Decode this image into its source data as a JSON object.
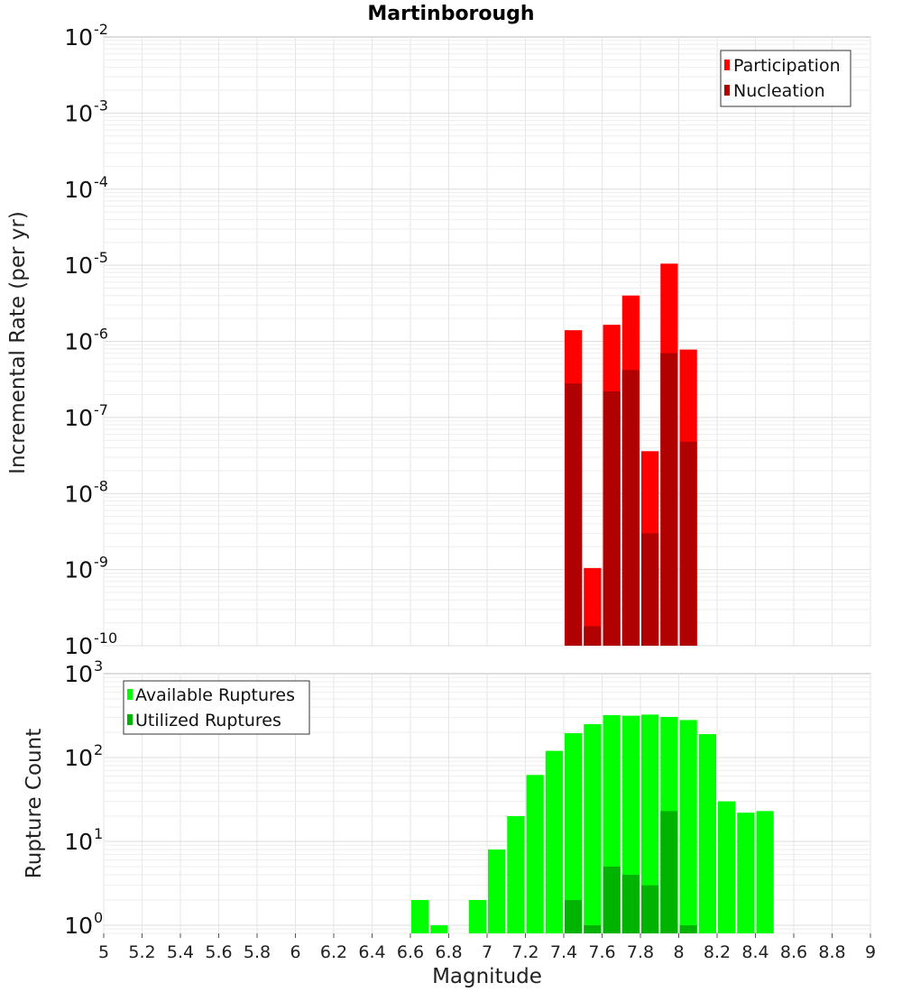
{
  "chart_data": [
    {
      "type": "bar",
      "title": "Martinborough",
      "ylabel": "Incremental Rate (per yr)",
      "xlabel": "",
      "yscale": "log",
      "ylim": [
        1e-10,
        0.01
      ],
      "xlim": [
        5,
        9
      ],
      "y_ticks": [
        {
          "base": "10",
          "exp": "-10"
        },
        {
          "base": "10",
          "exp": "-9"
        },
        {
          "base": "10",
          "exp": "-8"
        },
        {
          "base": "10",
          "exp": "-7"
        },
        {
          "base": "10",
          "exp": "-6"
        },
        {
          "base": "10",
          "exp": "-5"
        },
        {
          "base": "10",
          "exp": "-4"
        },
        {
          "base": "10",
          "exp": "-3"
        },
        {
          "base": "10",
          "exp": "-2"
        }
      ],
      "bar_width": 0.1,
      "x": [
        7.45,
        7.55,
        7.65,
        7.75,
        7.85,
        7.95,
        8.05
      ],
      "series": [
        {
          "name": "Participation",
          "color": "#ff0000",
          "values": [
            1.4e-06,
            1.05e-09,
            1.65e-06,
            4e-06,
            3.6e-08,
            1.05e-05,
            7.8e-07
          ]
        },
        {
          "name": "Nucleation",
          "color": "#b00000",
          "values": [
            2.8e-07,
            1.8e-10,
            2.2e-07,
            4.2e-07,
            3e-09,
            7e-07,
            4.8e-08
          ]
        }
      ],
      "legend": "top-right",
      "grid": true
    },
    {
      "type": "bar",
      "title": "",
      "ylabel": "Rupture Count",
      "xlabel": "Magnitude",
      "yscale": "log",
      "ylim": [
        0.8,
        1000
      ],
      "xlim": [
        5,
        9
      ],
      "y_ticks": [
        {
          "base": "10",
          "exp": "0",
          "value": 1
        },
        {
          "base": "10",
          "exp": "1",
          "value": 10
        },
        {
          "base": "10",
          "exp": "2",
          "value": 100
        },
        {
          "base": "10",
          "exp": "3",
          "value": 1000
        }
      ],
      "x_ticks": [
        "5",
        "5.2",
        "5.4",
        "5.6",
        "5.8",
        "6",
        "6.2",
        "6.4",
        "6.6",
        "6.8",
        "7",
        "7.2",
        "7.4",
        "7.6",
        "7.8",
        "8",
        "8.2",
        "8.4",
        "8.6",
        "8.8",
        "9"
      ],
      "bar_width": 0.1,
      "series": [
        {
          "name": "Available Ruptures",
          "color": "#00ff00",
          "x": [
            6.65,
            6.75,
            6.95,
            7.05,
            7.15,
            7.25,
            7.35,
            7.45,
            7.55,
            7.65,
            7.75,
            7.85,
            7.95,
            8.05,
            8.15,
            8.25,
            8.35,
            8.45
          ],
          "values": [
            2,
            1,
            2,
            8,
            20,
            62,
            120,
            195,
            250,
            320,
            315,
            325,
            305,
            280,
            190,
            30,
            22,
            23
          ]
        },
        {
          "name": "Utilized Ruptures",
          "color": "#00b300",
          "x": [
            7.45,
            7.55,
            7.65,
            7.75,
            7.85,
            7.95,
            8.05
          ],
          "values": [
            2,
            1,
            5,
            4,
            3,
            23,
            1
          ]
        }
      ],
      "legend": "top-left",
      "grid": true
    }
  ]
}
